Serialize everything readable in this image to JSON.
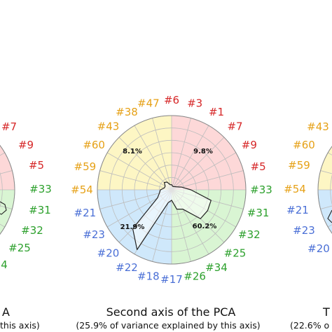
{
  "colors": {
    "red": "#d62728",
    "orange": "#e6a117",
    "green": "#2ca02c",
    "blue": "#4a6fd6",
    "q_red": "#fdd8d8",
    "q_yellow": "#fdf6c4",
    "q_green": "#d9f5d3",
    "q_blue": "#cfe8fb"
  },
  "chart_data": [
    {
      "type": "radar",
      "title": "Second axis of the PCA",
      "subtitle": "(25.9% of variance explained by this axis)",
      "quadrant_percents": {
        "top_left": "8.1%",
        "top_right": "9.8%",
        "bottom_left": "21.9%",
        "bottom_right": "60.2%"
      },
      "categories": [
        {
          "label": "#6",
          "group": "red"
        },
        {
          "label": "#3",
          "group": "red"
        },
        {
          "label": "#1",
          "group": "red"
        },
        {
          "label": "#7",
          "group": "red"
        },
        {
          "label": "#9",
          "group": "red"
        },
        {
          "label": "#5",
          "group": "red"
        },
        {
          "label": "#33",
          "group": "green"
        },
        {
          "label": "#31",
          "group": "green"
        },
        {
          "label": "#32",
          "group": "green"
        },
        {
          "label": "#25",
          "group": "green"
        },
        {
          "label": "#34",
          "group": "green"
        },
        {
          "label": "#26",
          "group": "green"
        },
        {
          "label": "#17",
          "group": "blue"
        },
        {
          "label": "#18",
          "group": "blue"
        },
        {
          "label": "#22",
          "group": "blue"
        },
        {
          "label": "#20",
          "group": "blue"
        },
        {
          "label": "#23",
          "group": "blue"
        },
        {
          "label": "#21",
          "group": "blue"
        },
        {
          "label": "#54",
          "group": "orange"
        },
        {
          "label": "#59",
          "group": "orange"
        },
        {
          "label": "#60",
          "group": "orange"
        },
        {
          "label": "#43",
          "group": "orange"
        },
        {
          "label": "#38",
          "group": "orange"
        },
        {
          "label": "#47",
          "group": "orange"
        }
      ],
      "values": [
        0.07,
        0.05,
        0.05,
        0.06,
        0.08,
        0.14,
        0.26,
        0.55,
        0.56,
        0.55,
        0.3,
        0.27,
        0.14,
        0.18,
        0.93,
        0.74,
        0.22,
        0.17,
        0.15,
        0.1,
        0.1,
        0.14,
        0.12,
        0.07
      ],
      "rlim": [
        0,
        1
      ],
      "rings": 6
    },
    {
      "type": "radar",
      "title_fragment": "A",
      "subtitle_fragment": "this axis)",
      "visible_labels": [
        {
          "label": "#7",
          "group": "red"
        },
        {
          "label": "#9",
          "group": "red"
        },
        {
          "label": "#5",
          "group": "red"
        },
        {
          "label": "#33",
          "group": "green"
        },
        {
          "label": "#31",
          "group": "green"
        },
        {
          "label": "#32",
          "group": "green"
        },
        {
          "label": "#25",
          "group": "green"
        },
        {
          "label": "4",
          "group": "green"
        }
      ]
    },
    {
      "type": "radar",
      "title_fragment": "T",
      "subtitle_fragment": "(22.6% o",
      "visible_labels": [
        {
          "label": "#43",
          "group": "orange"
        },
        {
          "label": "#60",
          "group": "orange"
        },
        {
          "label": "#59",
          "group": "orange"
        },
        {
          "label": "#54",
          "group": "orange"
        },
        {
          "label": "#21",
          "group": "blue"
        },
        {
          "label": "#23",
          "group": "blue"
        },
        {
          "label": "#20",
          "group": "blue"
        }
      ]
    }
  ]
}
